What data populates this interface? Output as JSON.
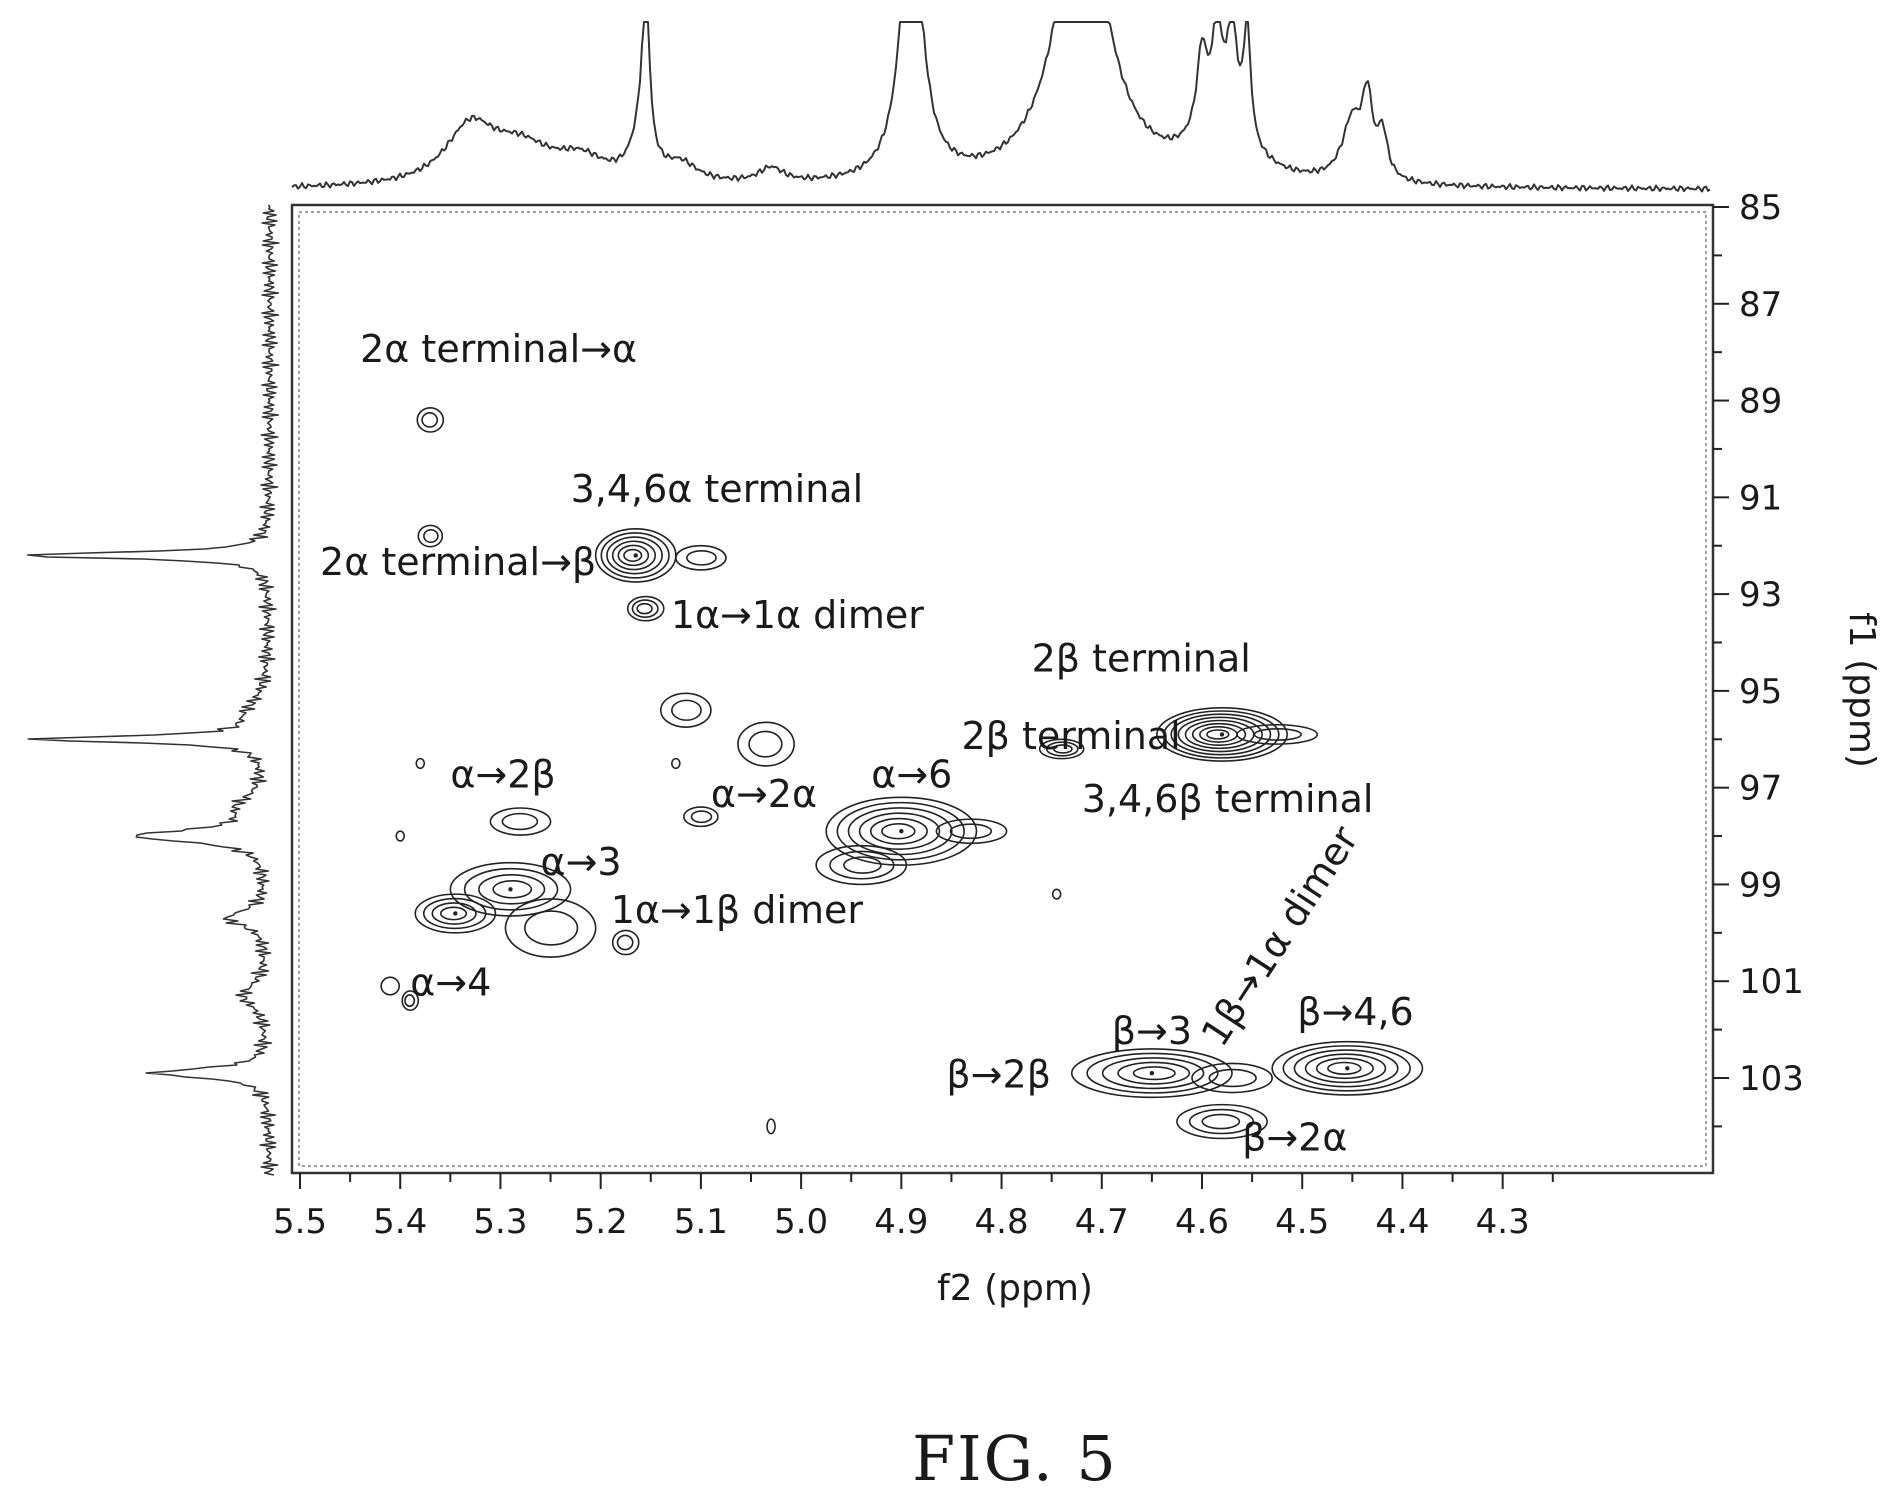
{
  "chart_data": {
    "type": "contour",
    "xlabel": "f2 (ppm)",
    "ylabel": "f1 (ppm)",
    "xlim": [
      5.5,
      4.2
    ],
    "ylim": [
      85,
      104.5
    ],
    "x_ticks": [
      "5.5",
      "5.4",
      "5.3",
      "5.2",
      "5.1",
      "5.0",
      "4.9",
      "4.8",
      "4.7",
      "4.6",
      "4.5",
      "4.4",
      "4.3"
    ],
    "y_ticks": [
      "85",
      "87",
      "89",
      "91",
      "93",
      "95",
      "97",
      "99",
      "101",
      "103"
    ],
    "caption": "FIG. 5",
    "peaks": [
      {
        "x": 5.37,
        "y": 89.4,
        "levels": 2,
        "rx": 0.013,
        "ry": 0.25
      },
      {
        "x": 5.37,
        "y": 91.8,
        "levels": 2,
        "rx": 0.012,
        "ry": 0.22
      },
      {
        "x": 5.165,
        "y": 92.2,
        "levels": 6,
        "rx": 0.04,
        "ry": 0.55
      },
      {
        "x": 5.1,
        "y": 92.25,
        "levels": 2,
        "rx": 0.025,
        "ry": 0.25
      },
      {
        "x": 5.155,
        "y": 93.3,
        "levels": 3,
        "rx": 0.018,
        "ry": 0.25
      },
      {
        "x": 5.115,
        "y": 95.4,
        "levels": 2,
        "rx": 0.025,
        "ry": 0.35
      },
      {
        "x": 5.035,
        "y": 96.1,
        "levels": 2,
        "rx": 0.028,
        "ry": 0.45
      },
      {
        "x": 5.1,
        "y": 97.6,
        "levels": 2,
        "rx": 0.017,
        "ry": 0.2
      },
      {
        "x": 4.9,
        "y": 97.9,
        "levels": 6,
        "rx": 0.075,
        "ry": 0.7
      },
      {
        "x": 4.94,
        "y": 98.6,
        "levels": 3,
        "rx": 0.045,
        "ry": 0.4
      },
      {
        "x": 4.83,
        "y": 97.9,
        "levels": 2,
        "rx": 0.035,
        "ry": 0.25
      },
      {
        "x": 4.74,
        "y": 96.2,
        "levels": 3,
        "rx": 0.022,
        "ry": 0.2
      },
      {
        "x": 4.58,
        "y": 95.9,
        "levels": 8,
        "rx": 0.065,
        "ry": 0.55
      },
      {
        "x": 4.525,
        "y": 95.9,
        "levels": 2,
        "rx": 0.04,
        "ry": 0.2
      },
      {
        "x": 5.28,
        "y": 97.7,
        "levels": 2,
        "rx": 0.03,
        "ry": 0.28
      },
      {
        "x": 5.29,
        "y": 99.1,
        "levels": 4,
        "rx": 0.06,
        "ry": 0.55
      },
      {
        "x": 5.345,
        "y": 99.6,
        "levels": 4,
        "rx": 0.04,
        "ry": 0.4
      },
      {
        "x": 5.25,
        "y": 99.9,
        "levels": 2,
        "rx": 0.045,
        "ry": 0.6
      },
      {
        "x": 5.175,
        "y": 100.2,
        "levels": 2,
        "rx": 0.013,
        "ry": 0.25
      },
      {
        "x": 5.41,
        "y": 101.1,
        "levels": 1,
        "rx": 0.009,
        "ry": 0.18
      },
      {
        "x": 5.39,
        "y": 101.4,
        "levels": 2,
        "rx": 0.008,
        "ry": 0.2
      },
      {
        "x": 4.65,
        "y": 102.9,
        "levels": 5,
        "rx": 0.08,
        "ry": 0.5
      },
      {
        "x": 4.455,
        "y": 102.8,
        "levels": 6,
        "rx": 0.075,
        "ry": 0.55
      },
      {
        "x": 4.57,
        "y": 103.0,
        "levels": 2,
        "rx": 0.04,
        "ry": 0.3
      },
      {
        "x": 4.58,
        "y": 103.9,
        "levels": 3,
        "rx": 0.045,
        "ry": 0.35
      },
      {
        "x": 5.38,
        "y": 96.5,
        "levels": 1,
        "rx": 0.004,
        "ry": 0.1
      },
      {
        "x": 5.4,
        "y": 98.0,
        "levels": 1,
        "rx": 0.004,
        "ry": 0.1
      },
      {
        "x": 5.125,
        "y": 96.5,
        "levels": 1,
        "rx": 0.004,
        "ry": 0.1
      },
      {
        "x": 4.745,
        "y": 99.2,
        "levels": 1,
        "rx": 0.004,
        "ry": 0.1
      },
      {
        "x": 5.03,
        "y": 104.0,
        "levels": 1,
        "rx": 0.004,
        "ry": 0.15
      }
    ],
    "annotations": [
      {
        "text": "2α terminal→α",
        "x": 5.44,
        "y": 88.2,
        "angle": 0
      },
      {
        "text": "3,4,6α terminal",
        "x": 5.23,
        "y": 91.1,
        "angle": 0
      },
      {
        "text": "2α terminal→β",
        "x": 5.48,
        "y": 92.6,
        "angle": 0
      },
      {
        "text": "1α→1α dimer",
        "x": 5.13,
        "y": 93.7,
        "angle": 0
      },
      {
        "text": "2β terminal",
        "x": 4.77,
        "y": 94.6,
        "angle": 0
      },
      {
        "text": "2β terminal",
        "x": 4.84,
        "y": 96.2,
        "angle": 0
      },
      {
        "text": "α→2β",
        "x": 5.35,
        "y": 97.0,
        "angle": 0
      },
      {
        "text": "3,4,6β terminal",
        "x": 4.72,
        "y": 97.5,
        "angle": 0
      },
      {
        "text": "α→6",
        "x": 4.93,
        "y": 97.0,
        "angle": 0
      },
      {
        "text": "α→2α",
        "x": 5.09,
        "y": 97.4,
        "angle": 0
      },
      {
        "text": "α→3",
        "x": 5.26,
        "y": 98.8,
        "angle": 0
      },
      {
        "text": "1α→1β dimer",
        "x": 5.19,
        "y": 99.8,
        "angle": 0
      },
      {
        "text": "α→4",
        "x": 5.39,
        "y": 101.3,
        "angle": 0
      },
      {
        "text": "1β→1α dimer",
        "x": 4.58,
        "y": 102.4,
        "angle": -57
      },
      {
        "text": "β→4,6",
        "x": 4.505,
        "y": 101.9,
        "angle": 0
      },
      {
        "text": "β→3",
        "x": 4.69,
        "y": 102.3,
        "angle": 0
      },
      {
        "text": "β→2β",
        "x": 4.855,
        "y": 103.2,
        "angle": 0
      },
      {
        "text": "β→2α",
        "x": 4.56,
        "y": 104.5,
        "angle": 0
      }
    ]
  }
}
